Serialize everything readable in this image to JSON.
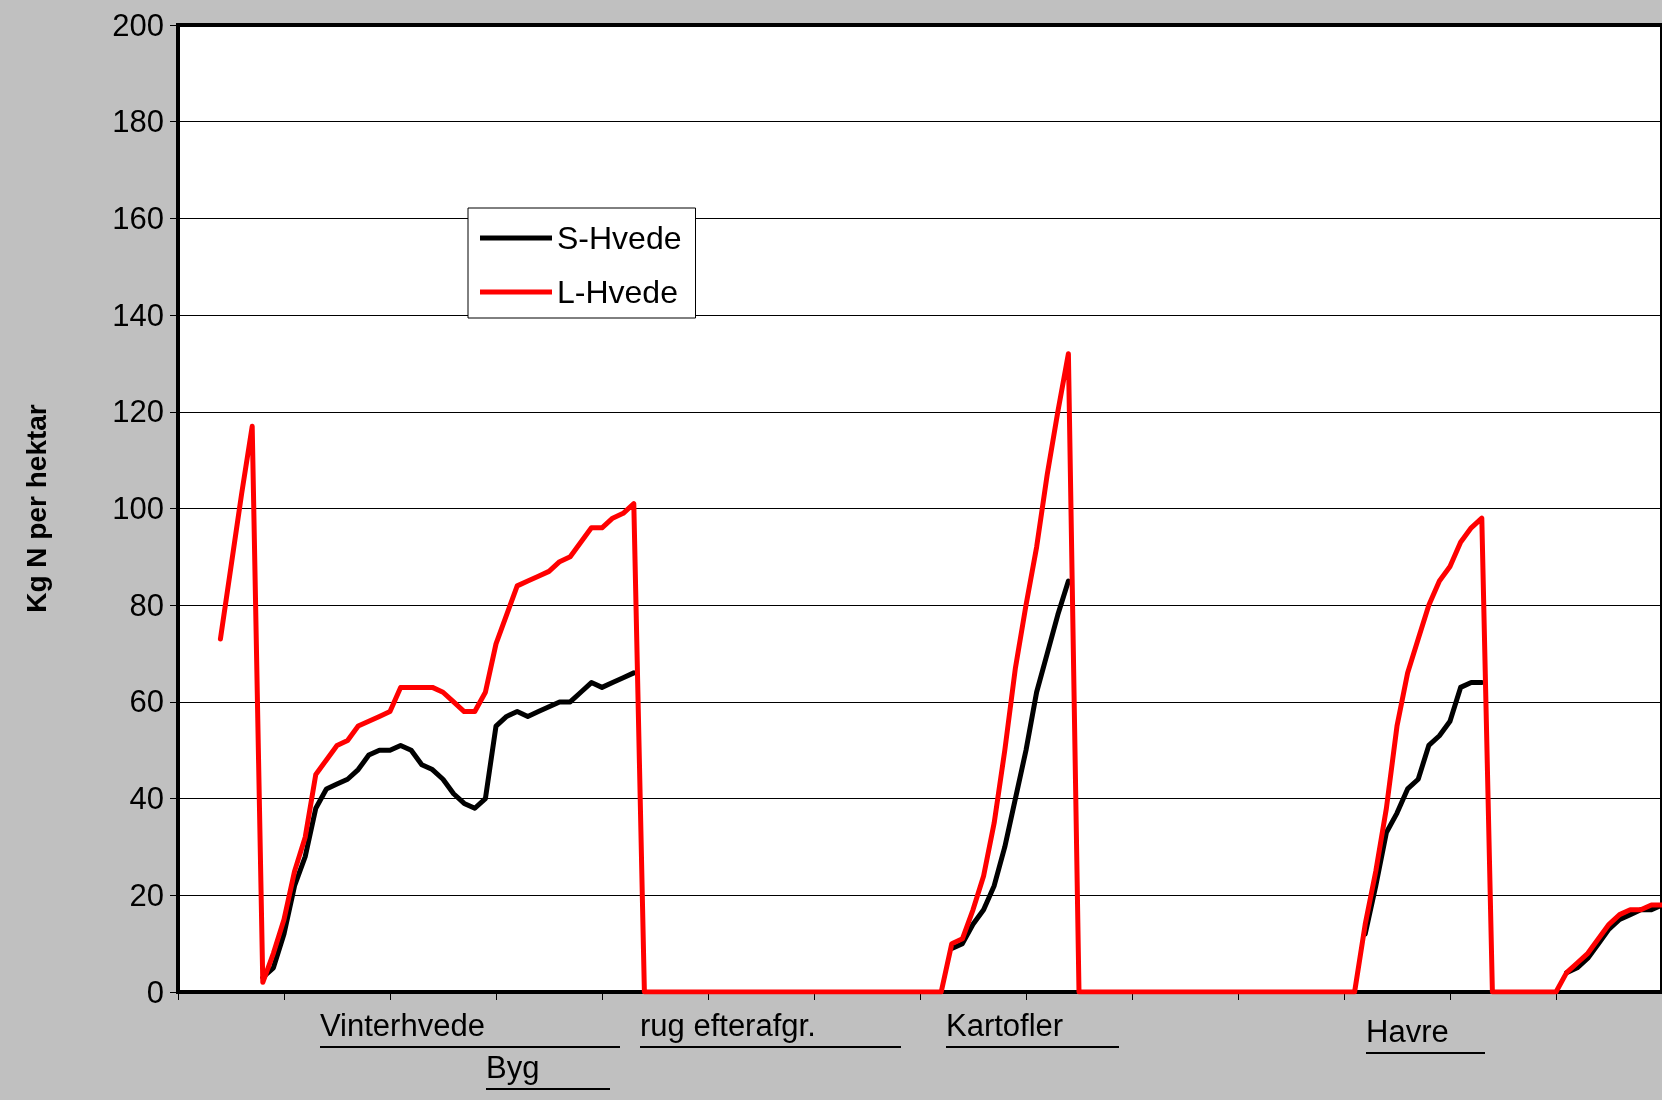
{
  "chart_data": {
    "type": "line",
    "ylabel": "Kg N per hektar",
    "categories": [
      null,
      null,
      null,
      null,
      null,
      null,
      null,
      null,
      null,
      null,
      null,
      null,
      null,
      null,
      null,
      null,
      null,
      null,
      null,
      null,
      null,
      null,
      null,
      null,
      null,
      null,
      null,
      null,
      null,
      null,
      null,
      null,
      null,
      null,
      null,
      null,
      null,
      null,
      null,
      null,
      null,
      null,
      null,
      null,
      null,
      null,
      null,
      null,
      null,
      null,
      null,
      null,
      null,
      null,
      null,
      null,
      null,
      null,
      null,
      null,
      null,
      null,
      null,
      null,
      null,
      null,
      null,
      null,
      null,
      null,
      null,
      null,
      null,
      null,
      null,
      null,
      null,
      null,
      null,
      null,
      null,
      null,
      null,
      null,
      null,
      null,
      null,
      null,
      null,
      null,
      null,
      null,
      null,
      null,
      null,
      null,
      null,
      null,
      null,
      null,
      null,
      null,
      null,
      null,
      null,
      null,
      null,
      null,
      null,
      null,
      null,
      null,
      null,
      null,
      null,
      null,
      null,
      null,
      null,
      null,
      null,
      null,
      null,
      null,
      null,
      null,
      null,
      null,
      null,
      null,
      null,
      null,
      null,
      null,
      null,
      null,
      null,
      null,
      null,
      null,
      null
    ],
    "series": [
      {
        "name": "S-Hvede",
        "color": "#000000",
        "values": [
          null,
          null,
          null,
          null,
          null,
          null,
          null,
          null,
          3,
          5,
          12,
          22,
          28,
          38,
          42,
          43,
          44,
          46,
          49,
          50,
          50,
          51,
          50,
          47,
          46,
          44,
          41,
          39,
          38,
          40,
          55,
          57,
          58,
          57,
          58,
          59,
          60,
          60,
          62,
          64,
          63,
          64,
          65,
          66,
          null,
          null,
          null,
          null,
          null,
          null,
          null,
          null,
          null,
          null,
          null,
          null,
          null,
          null,
          null,
          null,
          null,
          null,
          null,
          null,
          null,
          null,
          null,
          null,
          null,
          null,
          null,
          null,
          null,
          9,
          10,
          14,
          17,
          22,
          30,
          40,
          50,
          62,
          70,
          78,
          85,
          null,
          null,
          null,
          null,
          null,
          null,
          null,
          null,
          null,
          null,
          null,
          null,
          null,
          null,
          null,
          null,
          null,
          null,
          null,
          null,
          null,
          null,
          null,
          null,
          null,
          null,
          null,
          12,
          22,
          33,
          37,
          42,
          44,
          51,
          53,
          56,
          63,
          64,
          64,
          null,
          null,
          null,
          null,
          null,
          null,
          null,
          4,
          5,
          7,
          10,
          13,
          15,
          16,
          17,
          17,
          18
        ]
      },
      {
        "name": "L-Hvede",
        "color": "#ff0000",
        "values": [
          null,
          null,
          null,
          null,
          73,
          88,
          103,
          117,
          2,
          8,
          15,
          25,
          32,
          45,
          48,
          51,
          52,
          55,
          56,
          57,
          58,
          63,
          63,
          63,
          63,
          62,
          60,
          58,
          58,
          62,
          72,
          78,
          84,
          85,
          86,
          87,
          89,
          90,
          93,
          96,
          96,
          98,
          99,
          101,
          0,
          0,
          0,
          0,
          0,
          0,
          0,
          0,
          0,
          0,
          0,
          0,
          0,
          0,
          0,
          0,
          0,
          0,
          0,
          0,
          0,
          0,
          0,
          0,
          0,
          0,
          0,
          0,
          0,
          10,
          11,
          17,
          24,
          35,
          50,
          67,
          80,
          92,
          107,
          120,
          132,
          0,
          0,
          0,
          0,
          0,
          0,
          0,
          0,
          0,
          0,
          0,
          0,
          0,
          0,
          0,
          0,
          0,
          0,
          0,
          0,
          0,
          0,
          0,
          0,
          0,
          0,
          0,
          14,
          25,
          38,
          55,
          66,
          73,
          80,
          85,
          88,
          93,
          96,
          98,
          0,
          0,
          0,
          0,
          0,
          0,
          0,
          4,
          6,
          8,
          11,
          14,
          16,
          17,
          17,
          18,
          18
        ]
      }
    ],
    "ylim": [
      0,
      200
    ],
    "yticks": [
      0,
      20,
      40,
      60,
      80,
      100,
      120,
      140,
      160,
      180,
      200
    ],
    "tick_labels": "y",
    "grid": "y",
    "legend": "top left",
    "line_style": "solid",
    "annotations": [
      "Vinterhvede",
      "Byg",
      "rug efterafgr.",
      "Kartofler",
      "Havre"
    ]
  }
}
